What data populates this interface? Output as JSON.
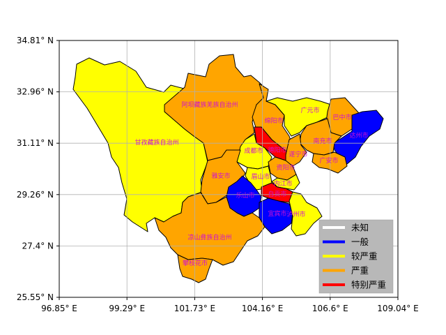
{
  "map": {
    "x_ticks": [
      "96.85° E",
      "99.29° E",
      "101.73° E",
      "104.16° E",
      "106.6° E",
      "109.04° E"
    ],
    "y_ticks": [
      "34.81° N",
      "32.96° N",
      "31.11° N",
      "29.26° N",
      "27.4° N",
      "25.55° N"
    ],
    "grid": true,
    "legend": {
      "position": "bottom-right",
      "items": [
        {
          "label": "未知",
          "color": "#ffffff"
        },
        {
          "label": "一般",
          "color": "#0000ff"
        },
        {
          "label": "较严重",
          "color": "#ffff00"
        },
        {
          "label": "严重",
          "color": "#ffa500"
        },
        {
          "label": "特别严重",
          "color": "#ff0000"
        }
      ]
    },
    "regions": [
      {
        "name": "阿坝藏族羌族自治州",
        "level": "严重",
        "color": "#ffa500"
      },
      {
        "name": "甘孜藏族自治州",
        "level": "较严重",
        "color": "#ffff00"
      },
      {
        "name": "凉山彝族自治州",
        "level": "严重",
        "color": "#ffa500"
      },
      {
        "name": "攀枝花市",
        "level": "严重",
        "color": "#ffa500"
      },
      {
        "name": "雅安市",
        "level": "严重",
        "color": "#ffa500"
      },
      {
        "name": "乐山市",
        "level": "一般",
        "color": "#0000ff"
      },
      {
        "name": "眉山市",
        "level": "较严重",
        "color": "#ffff00"
      },
      {
        "name": "成都市",
        "level": "较严重",
        "color": "#ffff00"
      },
      {
        "name": "绵阳市",
        "level": "严重",
        "color": "#ffa500"
      },
      {
        "name": "德阳市",
        "level": "特别严重",
        "color": "#ff0000"
      },
      {
        "name": "广元市",
        "level": "较严重",
        "color": "#ffff00"
      },
      {
        "name": "巴中市",
        "level": "严重",
        "color": "#ffa500"
      },
      {
        "name": "达州市",
        "level": "一般",
        "color": "#0000ff"
      },
      {
        "name": "南充市",
        "level": "严重",
        "color": "#ffa500"
      },
      {
        "name": "遂宁市",
        "level": "严重",
        "color": "#ffa500"
      },
      {
        "name": "广安市",
        "level": "严重",
        "color": "#ffa500"
      },
      {
        "name": "资阳市",
        "level": "严重",
        "color": "#ffa500"
      },
      {
        "name": "内江市",
        "level": "较严重",
        "color": "#ffff00"
      },
      {
        "name": "自贡市",
        "level": "特别严重",
        "color": "#ff0000"
      },
      {
        "name": "宜宾市",
        "level": "一般",
        "color": "#0000ff"
      },
      {
        "name": "泸州市",
        "level": "较严重",
        "color": "#ffff00"
      }
    ]
  }
}
